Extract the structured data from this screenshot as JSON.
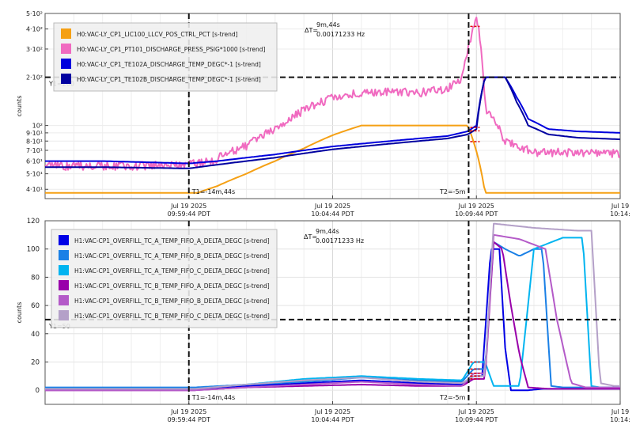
{
  "chart_data": [
    {
      "type": "line",
      "y_scale": "log",
      "ylabel": "counts",
      "ylim": [
        35,
        500
      ],
      "y_ticks": [
        {
          "v": 40,
          "label": "4·10¹"
        },
        {
          "v": 50,
          "label": "5·10¹"
        },
        {
          "v": 60,
          "label": "6·10¹"
        },
        {
          "v": 70,
          "label": "7·10¹"
        },
        {
          "v": 80,
          "label": "8·10¹"
        },
        {
          "v": 90,
          "label": "9·10¹"
        },
        {
          "v": 100,
          "label": "10²"
        },
        {
          "v": 200,
          "label": "2·10²"
        },
        {
          "v": 300,
          "label": "3·10²"
        },
        {
          "v": 400,
          "label": "4·10²"
        },
        {
          "v": 500,
          "label": "5·10²"
        }
      ],
      "x_ticks": [
        {
          "t": 0,
          "date": "Jul 19 2025",
          "time": "09:59:44 PDT"
        },
        {
          "t": 5,
          "date": "Jul 19 2025",
          "time": "10:04:44 PDT"
        },
        {
          "t": 10,
          "date": "Jul 19 2025",
          "time": "10:09:44 PDT"
        },
        {
          "t": 15,
          "date": "Jul 19",
          "time": "10:14:"
        }
      ],
      "xlim": [
        -5,
        15
      ],
      "grid": true,
      "legend_position": "top-left",
      "cursors": {
        "t1_label": "T1=-14m,44s",
        "t2_label": "T2=-5m",
        "delta_label": "ΔT=",
        "delta_time": "9m,44s",
        "delta_freq": "0.00171233 Hz",
        "y1_label": "Y1=200",
        "y1_value": 200
      },
      "series": [
        {
          "name": "H0:VAC-LY_CP1_LIC100_LLCV_POS_CTRL_PCT [s-trend]",
          "color": "#f5a014",
          "x": [
            -5,
            0,
            0.3,
            1,
            2,
            3,
            4,
            5,
            6,
            7,
            8,
            9,
            9.7,
            10.3,
            15
          ],
          "y": [
            38,
            38,
            38,
            42,
            50,
            60,
            72,
            87,
            100,
            100,
            100,
            100,
            100,
            38,
            38
          ]
        },
        {
          "name": "H0:VAC-LY_CP1_PT101_DISCHARGE_PRESS_PSIG*1000 [s-trend]",
          "color": "#f06ac0",
          "x": [
            -5,
            -2,
            0,
            0.8,
            2,
            3,
            4,
            5,
            6,
            7,
            8,
            9,
            9.5,
            9.8,
            10,
            10.3,
            11,
            12,
            13,
            15
          ],
          "y": [
            56,
            56,
            57,
            60,
            75,
            95,
            125,
            150,
            160,
            162,
            160,
            170,
            200,
            350,
            480,
            130,
            80,
            68,
            68,
            67
          ]
        },
        {
          "name": "H0:VAC-LY_CP1_TE102A_DISCHARGE_TEMP_DEGC*-1 [s-trend]",
          "color": "#0000dd",
          "x": [
            -5,
            -3,
            0,
            1,
            2,
            3,
            4,
            5,
            6,
            7,
            8,
            9,
            9.7,
            10,
            10.3,
            11,
            11.4,
            11.8,
            12.5,
            13.5,
            15
          ],
          "y": [
            60,
            60,
            58,
            60,
            63,
            66,
            70,
            74,
            77,
            80,
            83,
            86,
            92,
            100,
            200,
            200,
            150,
            110,
            95,
            92,
            90
          ]
        },
        {
          "name": "H0:VAC-LY_CP1_TE102B_DISCHARGE_TEMP_DEGC*-1 [s-trend]",
          "color": "#0000a0",
          "x": [
            -5,
            -3,
            0,
            1,
            2,
            3,
            4,
            5,
            6,
            7,
            8,
            9,
            9.7,
            10,
            10.3,
            11,
            11.4,
            11.8,
            12.5,
            13.5,
            15
          ],
          "y": [
            55,
            55,
            54,
            57,
            60,
            63,
            67,
            71,
            74,
            77,
            80,
            83,
            88,
            95,
            200,
            200,
            140,
            100,
            88,
            84,
            82
          ]
        }
      ]
    },
    {
      "type": "line",
      "ylabel": "counts",
      "ylim": [
        -10,
        120
      ],
      "y_ticks": [
        0,
        20,
        40,
        60,
        80,
        100,
        120
      ],
      "x_ticks": [
        {
          "t": 0,
          "date": "Jul 19 2025",
          "time": "09:59:44 PDT"
        },
        {
          "t": 5,
          "date": "Jul 19 2025",
          "time": "10:04:44 PDT"
        },
        {
          "t": 10,
          "date": "Jul 19 2025",
          "time": "10:09:44 PDT"
        },
        {
          "t": 15,
          "date": "Jul 19",
          "time": "10:14:"
        }
      ],
      "xlim": [
        -5,
        15
      ],
      "grid": true,
      "legend_position": "top-left",
      "cursors": {
        "t1_label": "T1=-14m,44s",
        "t2_label": "T2=-5m",
        "delta_label": "ΔT=",
        "delta_time": "9m,44s",
        "delta_freq": "0.00171233 Hz",
        "y1_label": "Y1=50",
        "y1_value": 50
      },
      "series": [
        {
          "name": "H1:VAC-CP1_OVERFILL_TC_A_TEMP_FIFO_A_DELTA_DEGC [s-trend]",
          "color": "#0000e6",
          "x": [
            -5,
            0,
            0.2,
            2,
            4,
            6,
            8,
            9.5,
            9.9,
            10,
            10.2,
            10.5,
            10.8,
            11,
            11.2,
            11.5,
            11.8,
            12.3,
            13,
            15
          ],
          "y": [
            1,
            1,
            1,
            3,
            5,
            7,
            5,
            4,
            10,
            10,
            10,
            100,
            100,
            30,
            0,
            0,
            0,
            1,
            1,
            1
          ]
        },
        {
          "name": "H1:VAC-CP1_OVERFILL_TC_A_TEMP_FIFO_B_DELTA_DEGC [s-trend]",
          "color": "#1a80e6",
          "x": [
            -5,
            0,
            0.2,
            2,
            4,
            6,
            8,
            9.5,
            9.9,
            10,
            10.3,
            10.6,
            11,
            11.5,
            12,
            12.3,
            12.6,
            13,
            13.5,
            15
          ],
          "y": [
            2,
            2,
            2,
            4,
            6,
            9,
            7,
            6,
            15,
            15,
            15,
            105,
            100,
            95,
            100,
            100,
            3,
            2,
            2,
            2
          ]
        },
        {
          "name": "H1:VAC-CP1_OVERFILL_TC_A_TEMP_FIFO_C_DELTA_DEGC [s-trend]",
          "color": "#00b4f0",
          "x": [
            -5,
            0,
            0.2,
            2,
            4,
            6,
            8,
            9.5,
            9.9,
            10,
            10.3,
            10.6,
            11.5,
            12,
            13,
            13.7,
            14,
            14.3,
            15
          ],
          "y": [
            1,
            1,
            1,
            4,
            8,
            10,
            8,
            7,
            20,
            20,
            20,
            3,
            3,
            100,
            108,
            108,
            3,
            2,
            2
          ]
        },
        {
          "name": "H1:VAC-CP1_OVERFILL_TC_B_TEMP_FIFO_A_DELTA_DEGC [s-trend]",
          "color": "#9900aa",
          "x": [
            -5,
            0,
            0.2,
            2,
            4,
            6,
            8,
            9.5,
            9.9,
            10,
            10.3,
            10.6,
            10.9,
            11.2,
            11.5,
            11.8,
            12.5,
            15
          ],
          "y": [
            0,
            0,
            0,
            2,
            3,
            4,
            3,
            3,
            8,
            8,
            8,
            105,
            100,
            60,
            25,
            2,
            1,
            1
          ]
        },
        {
          "name": "H1:VAC-CP1_OVERFILL_TC_B_TEMP_FIFO_B_DELTA_DEGC [s-trend]",
          "color": "#b45ac8",
          "x": [
            -5,
            0,
            0.2,
            2,
            4,
            6,
            8,
            9.5,
            9.9,
            10,
            10.3,
            10.6,
            11.5,
            12.4,
            12.8,
            13.3,
            13.8,
            15
          ],
          "y": [
            0,
            0,
            0,
            2,
            4,
            6,
            4,
            3,
            12,
            12,
            12,
            110,
            107,
            100,
            50,
            5,
            2,
            2
          ]
        },
        {
          "name": "H1:VAC-CP1_OVERFILL_TC_B_TEMP_FIFO_C_DELTA_DEGC [s-trend]",
          "color": "#b4a0c8",
          "x": [
            -5,
            0,
            0.2,
            2,
            4,
            6,
            8,
            9.5,
            9.9,
            10,
            10.3,
            10.6,
            12,
            13.5,
            14,
            14.3,
            14.8,
            15
          ],
          "y": [
            1,
            1,
            1,
            4,
            7,
            9,
            6,
            5,
            10,
            10,
            10,
            118,
            115,
            113,
            113,
            5,
            3,
            3
          ]
        }
      ]
    }
  ]
}
